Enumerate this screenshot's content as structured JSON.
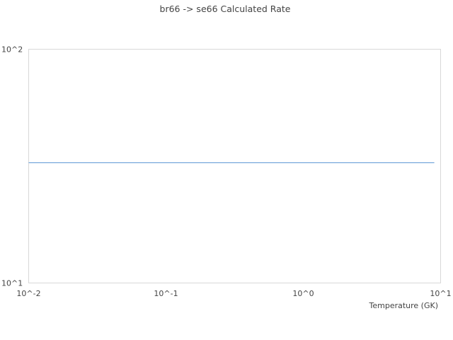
{
  "chart_data": {
    "type": "line",
    "title": "br66 -> se66 Calculated Rate",
    "xlabel": "Temperature (GK)",
    "ylabel": "",
    "x_scale": "log",
    "y_scale": "log",
    "xlim": [
      0.01,
      10
    ],
    "ylim": [
      10,
      100
    ],
    "x_ticks": [
      {
        "value": 0.01,
        "label": "10^-2"
      },
      {
        "value": 0.1,
        "label": "10^-1"
      },
      {
        "value": 1,
        "label": "10^0"
      },
      {
        "value": 10,
        "label": "10^1"
      }
    ],
    "y_ticks": [
      {
        "value": 10,
        "label": "10^1"
      },
      {
        "value": 100,
        "label": "10^2"
      }
    ],
    "grid": false,
    "series": [
      {
        "color": "#6a9fd8",
        "x": [
          0.01,
          9.0
        ],
        "y": [
          32.7,
          32.7
        ]
      }
    ]
  }
}
